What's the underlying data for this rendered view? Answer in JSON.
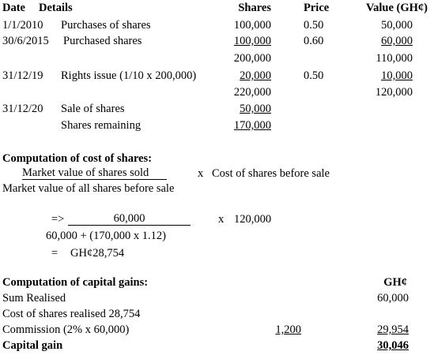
{
  "table": {
    "header": [
      "Date",
      "Details",
      "Shares",
      "Price",
      "Value (GH¢)"
    ],
    "rows": [
      {
        "date": "1/1/2010",
        "details": "Purchases of shares",
        "shares": "100,000",
        "price": "0.50",
        "value": "50,000"
      },
      {
        "date": "30/6/2015",
        "details": "Purchased shares",
        "shares": "100,000",
        "price": "0.60",
        "value": "60,000"
      },
      {
        "shares": "200,000",
        "value": "110,000"
      },
      {
        "date": "31/12/19",
        "details": "Rights issue (1/10 x 200,000)",
        "shares": "20,000",
        "price": "0.50",
        "value": "10,000"
      },
      {
        "shares": "220,000",
        "value": "120,000"
      },
      {
        "date": "31/12/20",
        "details": "Sale of shares",
        "shares": "50,000"
      },
      {
        "details": "Shares remaining",
        "shares": "170,000"
      }
    ]
  },
  "cost_computation": {
    "title": "Computation of cost of shares:",
    "numerator": "Market value of shares sold",
    "times": "x",
    "multiplier": "Cost of shares before sale",
    "denominator": "Market value of all shares before sale",
    "arrow": "=>",
    "numerator_value": "60,000",
    "times_value": "x",
    "multiplier_value": "120,000",
    "denominator_value": "60,000 + (170,000 x 1.12)",
    "equals": "=",
    "result": "GH¢28,754"
  },
  "capital_gains": {
    "title": "Computation of capital gains:",
    "currency": "GH¢",
    "lines": [
      {
        "label": "Sum Realised",
        "total": "60,000"
      },
      {
        "label": "Cost of shares realised 28,754"
      },
      {
        "label": "Commission (2% x 60,000)",
        "sub": "1,200",
        "total": "29,954"
      },
      {
        "label": "Capital gain",
        "total": "30,046"
      }
    ]
  }
}
